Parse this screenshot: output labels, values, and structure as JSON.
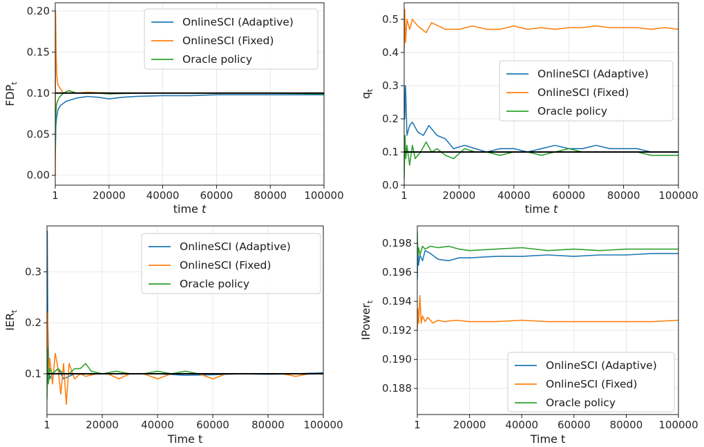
{
  "colors": {
    "adaptive": "#1f77b4",
    "fixed": "#ff7f0e",
    "oracle": "#2ca02c",
    "target": "#000000"
  },
  "chart_data": [
    {
      "type": "line",
      "ylabel": "FDP",
      "ylabel_sub": "t",
      "xlabel": "time",
      "xlabel_var": "t",
      "xlim": [
        1,
        100000
      ],
      "ylim": [
        -0.012,
        0.21
      ],
      "xticks": [
        1,
        20000,
        40000,
        60000,
        80000,
        100000
      ],
      "xtick_labels": [
        "1",
        "20000",
        "40000",
        "60000",
        "80000",
        "100000"
      ],
      "yticks": [
        0,
        0.05,
        0.1,
        0.15,
        0.2
      ],
      "ytick_labels": [
        "0.00",
        "0.05",
        "0.10",
        "0.15",
        "0.20"
      ],
      "grid": true,
      "legend_position": "upper-right",
      "target": 0.1,
      "series": [
        {
          "name": "OnlineSCI (Adaptive)",
          "color_key": "adaptive",
          "x": [
            1,
            200,
            500,
            1000,
            2000,
            4000,
            8000,
            12000,
            16000,
            20000,
            25000,
            30000,
            40000,
            50000,
            60000,
            70000,
            80000,
            90000,
            100000
          ],
          "y": [
            0.02,
            0.06,
            0.07,
            0.08,
            0.085,
            0.09,
            0.094,
            0.096,
            0.095,
            0.093,
            0.095,
            0.096,
            0.097,
            0.097,
            0.098,
            0.098,
            0.098,
            0.098,
            0.098
          ]
        },
        {
          "name": "OnlineSCI (Fixed)",
          "color_key": "fixed",
          "x": [
            1,
            100,
            300,
            600,
            1000,
            2000,
            3000,
            5000,
            8000,
            12000,
            20000,
            40000,
            60000,
            80000,
            100000
          ],
          "y": [
            0.0,
            0.2,
            0.15,
            0.12,
            0.11,
            0.105,
            0.1,
            0.103,
            0.1,
            0.101,
            0.1,
            0.1,
            0.1,
            0.1,
            0.1
          ]
        },
        {
          "name": "Oracle policy",
          "color_key": "oracle",
          "x": [
            1,
            150,
            400,
            800,
            1500,
            3000,
            5000,
            8000,
            12000,
            16000,
            20000,
            30000,
            40000,
            60000,
            80000,
            100000
          ],
          "y": [
            0.03,
            0.07,
            0.085,
            0.09,
            0.095,
            0.1,
            0.103,
            0.1,
            0.1,
            0.1,
            0.099,
            0.1,
            0.1,
            0.1,
            0.1,
            0.099
          ]
        }
      ]
    },
    {
      "type": "line",
      "ylabel": "q",
      "ylabel_sub": "t",
      "xlabel": "time",
      "xlabel_var": "t",
      "xlim": [
        1,
        100000
      ],
      "ylim": [
        0,
        0.55
      ],
      "xticks": [
        1,
        20000,
        40000,
        60000,
        80000,
        100000
      ],
      "xtick_labels": [
        "1",
        "20000",
        "40000",
        "60000",
        "80000",
        "100000"
      ],
      "yticks": [
        0,
        0.1,
        0.2,
        0.3,
        0.4,
        0.5
      ],
      "ytick_labels": [
        "0.0",
        "0.1",
        "0.2",
        "0.3",
        "0.4",
        "0.5"
      ],
      "grid": true,
      "legend_position": "center-right",
      "target": 0.1,
      "series": [
        {
          "name": "OnlineSCI (Adaptive)",
          "color_key": "adaptive",
          "x": [
            1,
            200,
            500,
            1000,
            2000,
            3000,
            5000,
            7000,
            9000,
            12000,
            15000,
            18000,
            22000,
            26000,
            30000,
            35000,
            40000,
            45000,
            50000,
            55000,
            60000,
            65000,
            70000,
            75000,
            80000,
            85000,
            90000,
            95000,
            100000
          ],
          "y": [
            0.3,
            0.2,
            0.3,
            0.15,
            0.18,
            0.19,
            0.16,
            0.15,
            0.18,
            0.15,
            0.14,
            0.11,
            0.12,
            0.11,
            0.1,
            0.11,
            0.11,
            0.1,
            0.11,
            0.12,
            0.11,
            0.11,
            0.12,
            0.11,
            0.11,
            0.11,
            0.1,
            0.1,
            0.1
          ]
        },
        {
          "name": "OnlineSCI (Fixed)",
          "color_key": "fixed",
          "x": [
            1,
            200,
            500,
            1000,
            2000,
            3000,
            5000,
            8000,
            10000,
            15000,
            20000,
            25000,
            30000,
            35000,
            40000,
            45000,
            50000,
            55000,
            60000,
            65000,
            70000,
            75000,
            80000,
            85000,
            90000,
            95000,
            100000
          ],
          "y": [
            0.4,
            0.53,
            0.43,
            0.5,
            0.47,
            0.5,
            0.48,
            0.46,
            0.49,
            0.47,
            0.47,
            0.48,
            0.47,
            0.47,
            0.48,
            0.47,
            0.475,
            0.47,
            0.475,
            0.475,
            0.48,
            0.475,
            0.475,
            0.475,
            0.47,
            0.475,
            0.47
          ]
        },
        {
          "name": "Oracle policy",
          "color_key": "oracle",
          "x": [
            1,
            300,
            600,
            1000,
            2000,
            3000,
            4000,
            6000,
            8000,
            10000,
            12000,
            15000,
            18000,
            22000,
            26000,
            30000,
            35000,
            40000,
            45000,
            50000,
            55000,
            60000,
            65000,
            70000,
            75000,
            80000,
            85000,
            90000,
            95000,
            100000
          ],
          "y": [
            0.02,
            0.15,
            0.08,
            0.12,
            0.06,
            0.12,
            0.08,
            0.1,
            0.13,
            0.1,
            0.11,
            0.09,
            0.08,
            0.11,
            0.1,
            0.1,
            0.09,
            0.1,
            0.1,
            0.09,
            0.1,
            0.11,
            0.1,
            0.1,
            0.1,
            0.1,
            0.1,
            0.09,
            0.09,
            0.09
          ]
        }
      ]
    },
    {
      "type": "line",
      "ylabel": "IER",
      "ylabel_sub": "t",
      "xlabel": "Time t",
      "xlabel_var": "",
      "xlim": [
        1,
        100000
      ],
      "ylim": [
        0.02,
        0.39
      ],
      "xticks": [
        1,
        20000,
        40000,
        60000,
        80000,
        100000
      ],
      "xtick_labels": [
        "1",
        "20000",
        "40000",
        "60000",
        "80000",
        "100000"
      ],
      "yticks": [
        0.1,
        0.2,
        0.3
      ],
      "ytick_labels": [
        "0.1",
        "0.2",
        "0.3"
      ],
      "grid": true,
      "legend_position": "upper-right",
      "target": 0.1,
      "series": [
        {
          "name": "OnlineSCI (Adaptive)",
          "color_key": "adaptive",
          "x": [
            1,
            100,
            300,
            600,
            1000,
            2000,
            4000,
            6000,
            10000,
            15000,
            20000,
            30000,
            40000,
            50000,
            60000,
            70000,
            80000,
            90000,
            100000
          ],
          "y": [
            0.1,
            0.38,
            0.2,
            0.13,
            0.09,
            0.1,
            0.11,
            0.09,
            0.1,
            0.1,
            0.1,
            0.1,
            0.1,
            0.097,
            0.098,
            0.1,
            0.099,
            0.1,
            0.102
          ]
        },
        {
          "name": "OnlineSCI (Fixed)",
          "color_key": "fixed",
          "x": [
            1,
            200,
            500,
            1000,
            2000,
            3000,
            4000,
            5000,
            6000,
            7000,
            8000,
            10000,
            12000,
            14000,
            18000,
            22000,
            26000,
            30000,
            35000,
            40000,
            45000,
            50000,
            55000,
            60000,
            65000,
            70000,
            75000,
            80000,
            85000,
            90000,
            95000,
            100000
          ],
          "y": [
            0.07,
            0.22,
            0.1,
            0.13,
            0.08,
            0.14,
            0.11,
            0.06,
            0.12,
            0.04,
            0.12,
            0.09,
            0.1,
            0.095,
            0.1,
            0.1,
            0.09,
            0.1,
            0.1,
            0.09,
            0.1,
            0.1,
            0.1,
            0.09,
            0.1,
            0.1,
            0.1,
            0.1,
            0.1,
            0.095,
            0.1,
            0.1
          ]
        },
        {
          "name": "Oracle policy",
          "color_key": "oracle",
          "x": [
            1,
            200,
            500,
            1000,
            2000,
            4000,
            6000,
            8000,
            10000,
            12000,
            14000,
            16000,
            20000,
            25000,
            30000,
            35000,
            40000,
            45000,
            50000,
            55000,
            60000,
            65000,
            70000,
            80000,
            90000,
            100000
          ],
          "y": [
            0.05,
            0.15,
            0.08,
            0.11,
            0.1,
            0.11,
            0.1,
            0.1,
            0.11,
            0.11,
            0.12,
            0.105,
            0.1,
            0.105,
            0.1,
            0.1,
            0.105,
            0.1,
            0.105,
            0.1,
            0.1,
            0.1,
            0.1,
            0.1,
            0.1,
            0.1
          ]
        }
      ]
    },
    {
      "type": "line",
      "ylabel": "IPower",
      "ylabel_sub": "t",
      "xlabel": "Time t",
      "xlabel_var": "",
      "xlim": [
        1,
        100000
      ],
      "ylim": [
        0.1862,
        0.1992
      ],
      "xticks": [
        1,
        20000,
        40000,
        60000,
        80000,
        100000
      ],
      "xtick_labels": [
        "1",
        "20000",
        "40000",
        "60000",
        "80000",
        "100000"
      ],
      "yticks": [
        0.188,
        0.19,
        0.192,
        0.194,
        0.196,
        0.198
      ],
      "ytick_labels": [
        "0.188",
        "0.190",
        "0.192",
        "0.194",
        "0.196",
        "0.198"
      ],
      "grid": true,
      "legend_position": "lower-right",
      "target": null,
      "series": [
        {
          "name": "OnlineSCI (Adaptive)",
          "color_key": "adaptive",
          "x": [
            1,
            200,
            500,
            1000,
            2000,
            3000,
            5000,
            8000,
            12000,
            16000,
            20000,
            30000,
            40000,
            50000,
            60000,
            70000,
            80000,
            90000,
            100000
          ],
          "y": [
            0.1955,
            0.1975,
            0.1965,
            0.1972,
            0.1968,
            0.1975,
            0.1973,
            0.1969,
            0.1968,
            0.197,
            0.197,
            0.1971,
            0.1971,
            0.1972,
            0.1971,
            0.1972,
            0.1972,
            0.1973,
            0.1973
          ]
        },
        {
          "name": "OnlineSCI (Fixed)",
          "color_key": "fixed",
          "x": [
            1,
            200,
            500,
            1000,
            1500,
            2000,
            3000,
            4000,
            6000,
            8000,
            10000,
            15000,
            20000,
            30000,
            40000,
            50000,
            60000,
            70000,
            80000,
            90000,
            100000
          ],
          "y": [
            0.192,
            0.1935,
            0.1925,
            0.1944,
            0.1925,
            0.193,
            0.1926,
            0.1929,
            0.1925,
            0.1927,
            0.1926,
            0.1927,
            0.1926,
            0.1926,
            0.1927,
            0.1926,
            0.1926,
            0.1926,
            0.1926,
            0.1926,
            0.1927
          ]
        },
        {
          "name": "Oracle policy",
          "color_key": "oracle",
          "x": [
            1,
            200,
            500,
            1000,
            2000,
            3000,
            5000,
            8000,
            12000,
            16000,
            20000,
            30000,
            40000,
            50000,
            60000,
            70000,
            80000,
            90000,
            100000
          ],
          "y": [
            0.1988,
            0.1972,
            0.1977,
            0.1972,
            0.1978,
            0.1976,
            0.1978,
            0.1977,
            0.1978,
            0.1976,
            0.1975,
            0.1976,
            0.1977,
            0.1975,
            0.1976,
            0.1975,
            0.1976,
            0.1976,
            0.1976
          ]
        }
      ]
    }
  ]
}
